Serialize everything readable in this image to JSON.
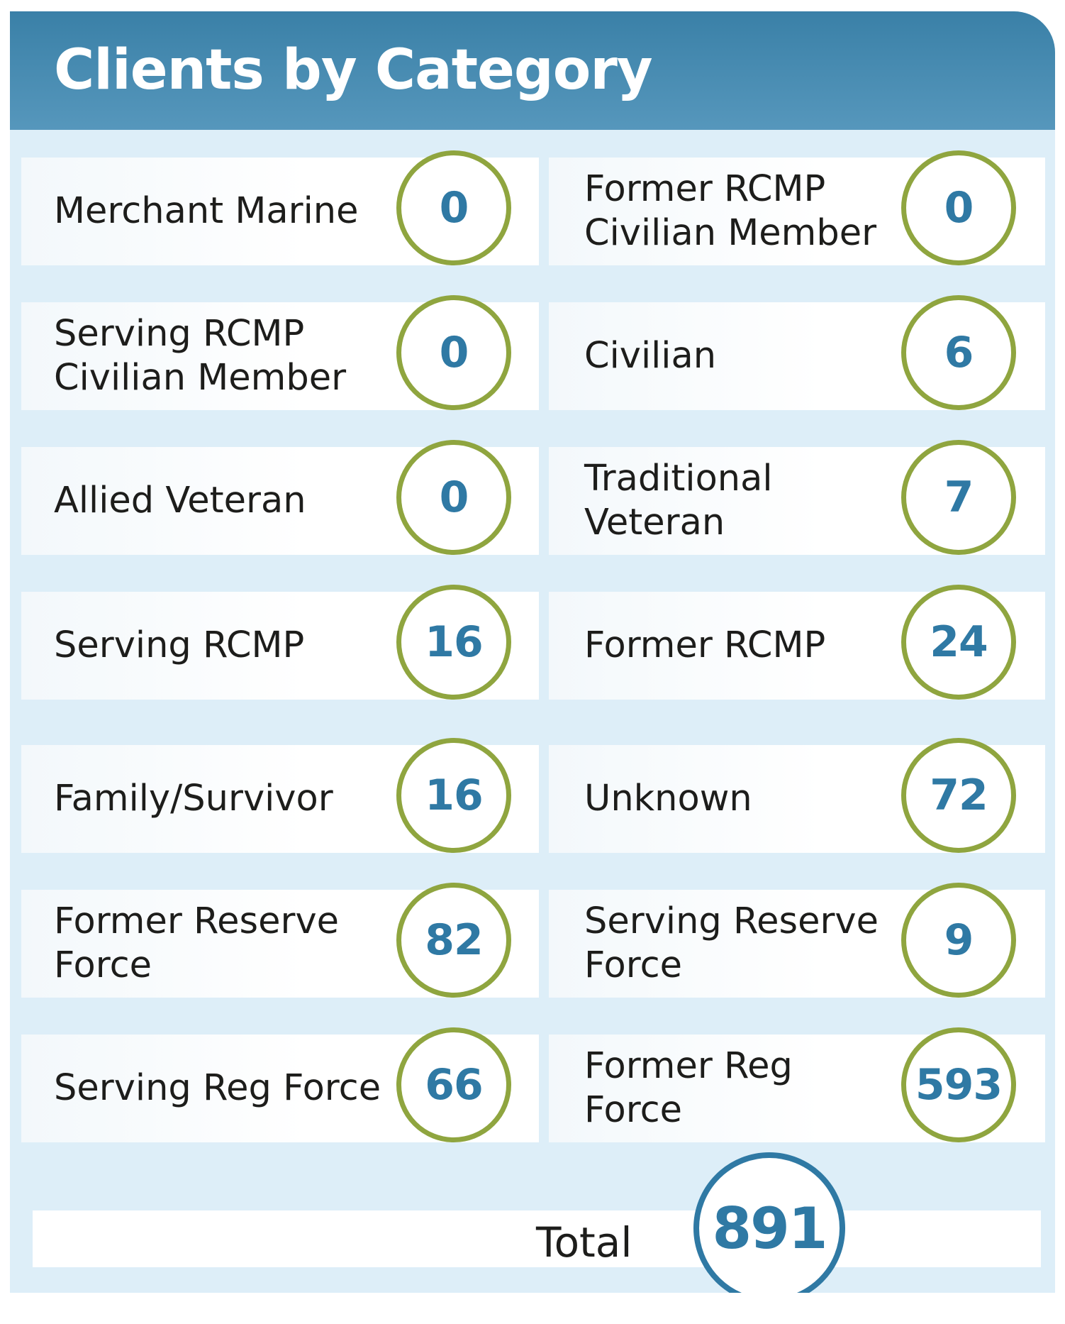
{
  "title": "Clients by Category",
  "colors": {
    "header_blue": "#3a80a7",
    "panel_bg": "#ddeef8",
    "ring_green": "#8fa53f",
    "number_blue": "#2f79a4",
    "label_text": "#1d1d1b"
  },
  "categories": [
    {
      "label": "Merchant Marine",
      "value": "0"
    },
    {
      "label": "Former RCMP\nCivilian Member",
      "value": "0"
    },
    {
      "label": "Serving RCMP\nCivilian Member",
      "value": "0"
    },
    {
      "label": "Civilian",
      "value": "6"
    },
    {
      "label": "Allied Veteran",
      "value": "0"
    },
    {
      "label": "Traditional\nVeteran",
      "value": "7"
    },
    {
      "label": "Serving RCMP",
      "value": "16"
    },
    {
      "label": "Former RCMP",
      "value": "24"
    },
    {
      "label": "Family/Survivor",
      "value": "16"
    },
    {
      "label": "Unknown",
      "value": "72"
    },
    {
      "label": "Former Reserve\nForce",
      "value": "82"
    },
    {
      "label": "Serving Reserve\nForce",
      "value": "9"
    },
    {
      "label": "Serving Reg Force",
      "value": "66"
    },
    {
      "label": "Former Reg\nForce",
      "value": "593"
    }
  ],
  "total": {
    "label": "Total",
    "value": "891"
  }
}
